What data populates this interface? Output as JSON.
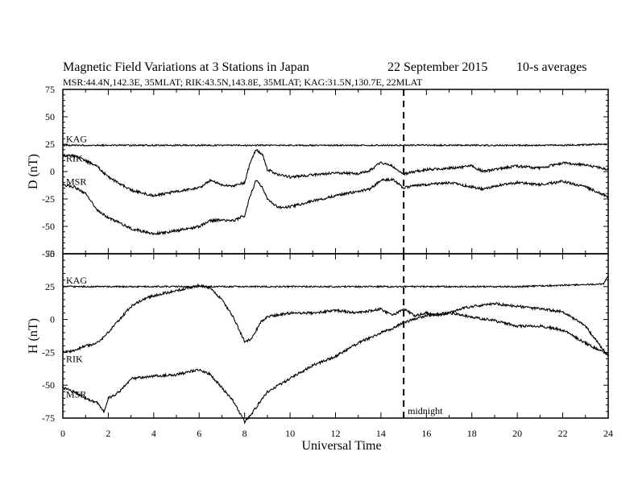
{
  "chart_data": {
    "type": "line",
    "title": "Magnetic Field Variations at 3 Stations in Japan",
    "date": "22 September 2015",
    "averaging": "10-s averages",
    "subtitle": "MSR:44.4N,142.3E, 35MLAT;   RIK:43.5N,143.8E, 35MLAT;   KAG:31.5N,130.7E, 22MLAT",
    "xlabel": "Universal Time",
    "xlim": [
      0,
      24
    ],
    "xticks": [
      "0",
      "2",
      "4",
      "6",
      "8",
      "10",
      "12",
      "14",
      "16",
      "18",
      "20",
      "22",
      "24"
    ],
    "midnight_label": "midnight",
    "midnight_x": 15,
    "line_color": "#000000",
    "panels": [
      {
        "name": "D",
        "ylabel": "D (nT)",
        "ylim": [
          -75,
          75
        ],
        "yticks": [
          "75",
          "50",
          "25",
          "0",
          "-25",
          "-50",
          "-75"
        ],
        "series": [
          {
            "name": "KAG",
            "x": [
              0,
              2,
              4,
              6,
              8,
              10,
              12,
              14,
              15,
              16,
              18,
              20,
              22,
              24
            ],
            "y": [
              24,
              24,
              24,
              24,
              24,
              24,
              24,
              24,
              24,
              24,
              24,
              24,
              24,
              25
            ]
          },
          {
            "name": "RIK",
            "x": [
              0,
              0.5,
              1,
              1.5,
              2,
              3,
              4,
              5,
              6,
              6.5,
              7,
              7.5,
              8,
              8.2,
              8.5,
              8.8,
              9,
              9.5,
              10,
              11,
              12,
              13,
              13.5,
              14,
              14.5,
              15,
              15.5,
              16,
              17,
              18,
              18.5,
              19,
              20,
              21,
              22,
              23,
              24
            ],
            "y": [
              15,
              14,
              10,
              5,
              -5,
              -17,
              -22,
              -18,
              -15,
              -8,
              -12,
              -13,
              -10,
              5,
              20,
              15,
              2,
              -3,
              -5,
              -3,
              -1,
              -2,
              1,
              8,
              5,
              -2,
              0,
              2,
              3,
              5,
              0,
              2,
              5,
              3,
              8,
              6,
              2
            ]
          },
          {
            "name": "MSR",
            "x": [
              0,
              0.5,
              1,
              1.5,
              2,
              2.5,
              3,
              4,
              5,
              6,
              6.5,
              7,
              7.5,
              8,
              8.2,
              8.5,
              8.8,
              9,
              9.5,
              10,
              11,
              12,
              13,
              13.5,
              14,
              14.5,
              15,
              15.5,
              16,
              17,
              18,
              18.5,
              19,
              20,
              21,
              22,
              23,
              24
            ],
            "y": [
              -12,
              -14,
              -20,
              -35,
              -42,
              -47,
              -52,
              -57,
              -54,
              -50,
              -45,
              -44,
              -45,
              -40,
              -25,
              -8,
              -15,
              -25,
              -33,
              -32,
              -27,
              -22,
              -18,
              -16,
              -8,
              -7,
              -15,
              -13,
              -12,
              -10,
              -14,
              -16,
              -13,
              -10,
              -12,
              -9,
              -14,
              -23
            ]
          }
        ]
      },
      {
        "name": "H",
        "ylabel": "H (nT)",
        "ylim": [
          -75,
          50
        ],
        "yticks": [
          "50",
          "25",
          "0",
          "-25",
          "-50",
          "-75"
        ],
        "series": [
          {
            "name": "KAG",
            "x": [
              0,
              2,
              4,
              6,
              8,
              10,
              12,
              14,
              15,
              16,
              18,
              20,
              22,
              23.8,
              24
            ],
            "y": [
              25,
              25,
              25,
              25,
              25,
              25,
              25,
              25,
              25,
              25,
              25,
              25,
              26,
              27,
              33
            ]
          },
          {
            "name": "RIK",
            "x": [
              0,
              0.5,
              1,
              1.5,
              2,
              2.5,
              3,
              3.5,
              4,
              4.5,
              5,
              5.5,
              6,
              6.5,
              7,
              7.5,
              8,
              8.3,
              8.7,
              9,
              10,
              11,
              12,
              13,
              14,
              14.5,
              15,
              15.5,
              16,
              16.5,
              17,
              17.5,
              18,
              19,
              20,
              21,
              22,
              23,
              24
            ],
            "y": [
              -25,
              -24,
              -20,
              -18,
              -10,
              0,
              10,
              15,
              18,
              20,
              22,
              24,
              26,
              24,
              15,
              2,
              -17,
              -15,
              -2,
              2,
              5,
              5,
              7,
              5,
              8,
              3,
              8,
              3,
              5,
              3,
              5,
              8,
              10,
              12,
              10,
              8,
              6,
              -5,
              -28
            ]
          },
          {
            "name": "MSR",
            "x": [
              0,
              0.5,
              1,
              1.5,
              1.8,
              2,
              2.5,
              3,
              4,
              5,
              6,
              6.5,
              7,
              7.5,
              8,
              8.3,
              8.7,
              9,
              10,
              11,
              12,
              13,
              14,
              14.5,
              15,
              15.5,
              16,
              17,
              18,
              19,
              20,
              21,
              22,
              23,
              24
            ],
            "y": [
              -52,
              -55,
              -60,
              -63,
              -70,
              -60,
              -55,
              -45,
              -43,
              -42,
              -38,
              -42,
              -52,
              -62,
              -78,
              -72,
              -62,
              -55,
              -45,
              -35,
              -28,
              -18,
              -10,
              -7,
              -2,
              0,
              3,
              5,
              2,
              -1,
              -5,
              -5,
              -8,
              -18,
              -27
            ]
          }
        ]
      }
    ]
  }
}
